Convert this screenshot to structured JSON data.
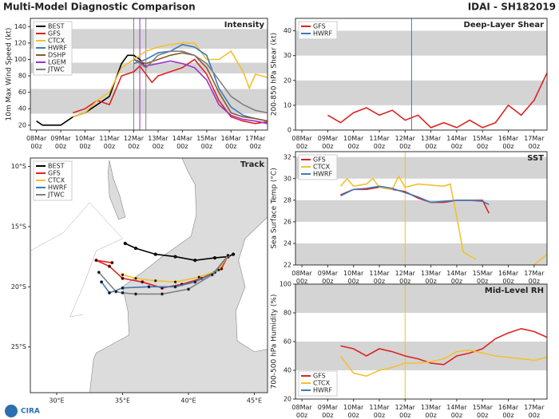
{
  "title": "Multi-Model Diagnostic Comparison",
  "storm": "IDAI - SH182019",
  "logo": "CIRA",
  "chart_data": [
    {
      "type": "line",
      "title": "Intensity",
      "ylabel": "10m Max Wind Speed (kt)",
      "legend": "upper left",
      "xlim": [
        "07Mar 18z",
        "17Mar 12z"
      ],
      "xticks": [
        "08Mar 00z",
        "09Mar 00z",
        "10Mar 00z",
        "11Mar 00z",
        "12Mar 00z",
        "13Mar 00z",
        "14Mar 00z",
        "15Mar 00z",
        "16Mar 00z",
        "17Mar 00z"
      ],
      "ylim": [
        14,
        150
      ],
      "yticks": [
        20,
        40,
        60,
        80,
        100,
        120,
        140
      ],
      "bands": [
        [
          34,
          64
        ],
        [
          83,
          96
        ],
        [
          113,
          137
        ]
      ],
      "vlines": [
        {
          "x": "12Mar 00z",
          "color": "#808080"
        },
        {
          "x": "12Mar 06z",
          "color": "#9b30c8"
        },
        {
          "x": "12Mar 12z",
          "color": "#808080"
        }
      ],
      "series": [
        {
          "name": "BEST",
          "color": "#000000",
          "x": [
            "08Mar 00z",
            "08Mar 06z",
            "09Mar 00z",
            "09Mar 12z",
            "10Mar 00z",
            "10Mar 12z",
            "11Mar 00z",
            "11Mar 06z",
            "11Mar 12z",
            "11Mar 18z",
            "12Mar 00z",
            "12Mar 06z",
            "12Mar 12z"
          ],
          "values": [
            25,
            20,
            20,
            30,
            35,
            45,
            55,
            75,
            95,
            105,
            105,
            100,
            90
          ]
        },
        {
          "name": "GFS",
          "color": "#dd2222",
          "x": [
            "09Mar 12z",
            "10Mar 00z",
            "10Mar 12z",
            "11Mar 00z",
            "11Mar 12z",
            "12Mar 00z",
            "12Mar 06z",
            "12Mar 18z",
            "13Mar 00z",
            "13Mar 12z",
            "14Mar 00z",
            "14Mar 12z",
            "15Mar 00z",
            "15Mar 12z",
            "16Mar 00z",
            "16Mar 12z",
            "17Mar 00z",
            "17Mar 12z"
          ],
          "values": [
            35,
            40,
            50,
            45,
            80,
            85,
            92,
            72,
            80,
            85,
            90,
            100,
            82,
            50,
            30,
            25,
            22,
            24
          ]
        },
        {
          "name": "CTCX",
          "color": "#f2c12e",
          "x": [
            "09Mar 12z",
            "10Mar 00z",
            "10Mar 12z",
            "11Mar 00z",
            "11Mar 12z",
            "12Mar 00z",
            "12Mar 12z",
            "13Mar 00z",
            "13Mar 12z",
            "14Mar 00z",
            "14Mar 12z",
            "15Mar 00z",
            "15Mar 12z",
            "16Mar 00z",
            "16Mar 12z",
            "16Mar 18z",
            "17Mar 00z",
            "17Mar 12z"
          ],
          "values": [
            30,
            35,
            50,
            60,
            90,
            100,
            110,
            115,
            118,
            120,
            120,
            100,
            100,
            110,
            85,
            65,
            82,
            78
          ]
        },
        {
          "name": "HWRF",
          "color": "#3d7ab8",
          "x": [
            "12Mar 00z",
            "12Mar 12z",
            "13Mar 00z",
            "13Mar 12z",
            "14Mar 00z",
            "14Mar 12z",
            "15Mar 00z",
            "15Mar 12z",
            "16Mar 00z",
            "16Mar 12z",
            "17Mar 00z",
            "17Mar 12z"
          ],
          "values": [
            95,
            100,
            108,
            110,
            118,
            115,
            105,
            65,
            42,
            32,
            28,
            25
          ]
        },
        {
          "name": "DSHP",
          "color": "#8c5a2e",
          "x": [
            "12Mar 00z",
            "12Mar 12z",
            "13Mar 00z",
            "13Mar 12z",
            "14Mar 00z",
            "14Mar 12z",
            "15Mar 00z",
            "15Mar 12z",
            "16Mar 00z",
            "16Mar 12z",
            "17Mar 00z",
            "17Mar 12z"
          ],
          "values": [
            100,
            95,
            100,
            105,
            108,
            105,
            90,
            60,
            35,
            30,
            28,
            25
          ]
        },
        {
          "name": "LGEM",
          "color": "#9b30c8",
          "x": [
            "12Mar 00z",
            "12Mar 12z",
            "13Mar 00z",
            "13Mar 12z",
            "14Mar 00z",
            "14Mar 12z",
            "15Mar 00z",
            "15Mar 12z",
            "16Mar 00z",
            "16Mar 12z",
            "17Mar 00z",
            "17Mar 12z"
          ],
          "values": [
            100,
            92,
            95,
            98,
            95,
            90,
            75,
            45,
            32,
            27,
            25,
            22
          ]
        },
        {
          "name": "JTWC",
          "color": "#808080",
          "x": [
            "12Mar 00z",
            "12Mar 12z",
            "13Mar 00z",
            "13Mar 12z",
            "14Mar 00z",
            "14Mar 12z",
            "15Mar 00z",
            "15Mar 12z",
            "16Mar 00z",
            "16Mar 12z",
            "17Mar 00z",
            "17Mar 12z"
          ],
          "values": [
            100,
            90,
            105,
            110,
            110,
            105,
            95,
            75,
            55,
            45,
            38,
            35
          ]
        }
      ]
    },
    {
      "type": "line",
      "title": "Deep-Layer Shear",
      "ylabel": "200-850 hPa Shear (kt)",
      "legend": "upper left",
      "xlim": [
        "07Mar 18z",
        "17Mar 12z"
      ],
      "xticks": [
        "08Mar 00z",
        "09Mar 00z",
        "10Mar 00z",
        "11Mar 00z",
        "12Mar 00z",
        "13Mar 00z",
        "14Mar 00z",
        "15Mar 00z",
        "16Mar 00z",
        "17Mar 00z"
      ],
      "ylim": [
        0,
        45
      ],
      "yticks": [
        0,
        10,
        20,
        30,
        40
      ],
      "bands": [
        [
          10,
          20
        ],
        [
          30,
          40
        ]
      ],
      "vlines": [
        {
          "x": "12Mar 06z",
          "color": "#3d7ab8"
        }
      ],
      "series": [
        {
          "name": "GFS",
          "color": "#dd2222",
          "x": [
            "09Mar 00z",
            "09Mar 12z",
            "10Mar 00z",
            "10Mar 12z",
            "11Mar 00z",
            "11Mar 12z",
            "12Mar 00z",
            "12Mar 12z",
            "13Mar 00z",
            "13Mar 12z",
            "14Mar 00z",
            "14Mar 12z",
            "15Mar 00z",
            "15Mar 12z",
            "16Mar 00z",
            "16Mar 12z",
            "17Mar 00z",
            "17Mar 12z"
          ],
          "values": [
            6,
            3,
            7,
            9,
            6,
            8,
            4,
            6,
            1,
            3,
            1,
            4,
            1,
            3,
            10,
            6,
            12,
            23
          ]
        },
        {
          "name": "HWRF",
          "color": "#3d7ab8",
          "x": [],
          "values": []
        }
      ]
    },
    {
      "type": "track",
      "title": "Track",
      "legend": "upper left",
      "xlim": [
        28,
        46
      ],
      "xticks": [
        {
          "value": 30,
          "label": "30°E"
        },
        {
          "value": 35,
          "label": "35°E"
        },
        {
          "value": 40,
          "label": "40°E"
        },
        {
          "value": 45,
          "label": "45°E"
        }
      ],
      "ylim": [
        -28.8,
        -9.3
      ],
      "yticks": [
        {
          "value": -10,
          "label": "10°S"
        },
        {
          "value": -15,
          "label": "15°S"
        },
        {
          "value": -20,
          "label": "20°S"
        },
        {
          "value": -25,
          "label": "25°S"
        }
      ],
      "series": [
        {
          "name": "BEST",
          "color": "#000000",
          "x": [
            35.2,
            36,
            37.5,
            39,
            40.5,
            42,
            43,
            43.4
          ],
          "values": [
            -16.4,
            -16.8,
            -17.3,
            -17.5,
            -17.8,
            -17.6,
            -17.5,
            -17.3
          ]
        },
        {
          "name": "GFS",
          "color": "#dd2222",
          "x": [
            43,
            42.5,
            41,
            39.5,
            38,
            36.5,
            35,
            34,
            33,
            34.2
          ],
          "values": [
            -17.4,
            -18.5,
            -19.3,
            -19.8,
            -20.1,
            -19.6,
            -19.3,
            -18.3,
            -17.8,
            -18
          ]
        },
        {
          "name": "CTCX",
          "color": "#f2c12e",
          "x": [
            43,
            42.3,
            40.8,
            39,
            37.5,
            36,
            35
          ],
          "values": [
            -17.4,
            -18.6,
            -19.2,
            -19.6,
            -19.5,
            -19.3,
            -19
          ]
        },
        {
          "name": "HWRF",
          "color": "#3d7ab8",
          "x": [
            43,
            42,
            40.5,
            39,
            37,
            35,
            34,
            33.4
          ],
          "values": [
            -17.4,
            -18.8,
            -19.6,
            -20,
            -20,
            -20.1,
            -20.5,
            -19.6
          ]
        },
        {
          "name": "JTWC",
          "color": "#808080",
          "x": [
            43,
            41.8,
            40,
            38,
            36,
            35,
            34.5,
            33.2
          ],
          "values": [
            -17.4,
            -19,
            -20.2,
            -20.6,
            -20.6,
            -20.5,
            -20.4,
            -18.8
          ]
        }
      ]
    },
    {
      "type": "line",
      "title": "SST",
      "ylabel": "Sea Surface Temp (°C)",
      "legend": "upper left",
      "xlim": [
        "07Mar 18z",
        "17Mar 12z"
      ],
      "xticks": [
        "08Mar 00z",
        "09Mar 00z",
        "10Mar 00z",
        "11Mar 00z",
        "12Mar 00z",
        "13Mar 00z",
        "14Mar 00z",
        "15Mar 00z",
        "16Mar 00z",
        "17Mar 00z"
      ],
      "ylim": [
        22,
        32.5
      ],
      "yticks": [
        22,
        24,
        26,
        28,
        30,
        32
      ],
      "bands": [
        [
          22,
          24
        ],
        [
          26,
          28
        ],
        [
          30,
          32
        ]
      ],
      "vlines": [
        {
          "x": "12Mar 00z",
          "color": "#f2c12e"
        }
      ],
      "series": [
        {
          "name": "GFS",
          "color": "#dd2222",
          "x": [
            "09Mar 12z",
            "10Mar 00z",
            "10Mar 12z",
            "11Mar 00z",
            "11Mar 12z",
            "12Mar 00z",
            "12Mar 12z",
            "13Mar 00z",
            "13Mar 12z",
            "14Mar 00z",
            "14Mar 12z",
            "15Mar 00z",
            "15Mar 06z"
          ],
          "values": [
            28.5,
            29,
            29,
            29.2,
            29,
            28.8,
            28.2,
            27.8,
            27.8,
            28,
            28,
            28,
            26.8
          ]
        },
        {
          "name": "CTCX",
          "color": "#f2c12e",
          "x": [
            "09Mar 12z",
            "09Mar 18z",
            "10Mar 00z",
            "10Mar 12z",
            "10Mar 18z",
            "11Mar 00z",
            "11Mar 12z",
            "11Mar 18z",
            "12Mar 00z",
            "12Mar 12z",
            "13Mar 00z",
            "13Mar 12z",
            "13Mar 18z",
            "14Mar 00z",
            "14Mar 06z",
            "14Mar 18z",
            "15Mar 00z",
            "17Mar 00z",
            "17Mar 12z"
          ],
          "values": [
            29.3,
            30,
            29.3,
            29.5,
            30,
            29.2,
            29,
            30.2,
            29.2,
            29.5,
            29.4,
            29.3,
            29.5,
            26.5,
            23.2,
            22.5,
            null,
            22,
            23
          ]
        },
        {
          "name": "HWRF",
          "color": "#3d7ab8",
          "x": [
            "09Mar 12z",
            "10Mar 00z",
            "10Mar 12z",
            "11Mar 00z",
            "11Mar 12z",
            "12Mar 00z",
            "12Mar 12z",
            "13Mar 00z",
            "13Mar 12z",
            "14Mar 00z",
            "14Mar 12z",
            "15Mar 00z",
            "15Mar 06z"
          ],
          "values": [
            28.4,
            29,
            29.1,
            29.3,
            29.1,
            28.7,
            28.3,
            27.8,
            27.9,
            28,
            28,
            27.9,
            27.6
          ]
        }
      ]
    },
    {
      "type": "line",
      "title": "Mid-Level RH",
      "ylabel": "700-500 hPa Humidity (%)",
      "legend": "lower left",
      "xlim": [
        "07Mar 18z",
        "17Mar 12z"
      ],
      "xticks": [
        "08Mar 00z",
        "09Mar 00z",
        "10Mar 00z",
        "11Mar 00z",
        "12Mar 00z",
        "13Mar 00z",
        "14Mar 00z",
        "15Mar 00z",
        "16Mar 00z",
        "17Mar 00z"
      ],
      "ylim": [
        20,
        100
      ],
      "yticks": [
        20,
        40,
        60,
        80,
        100
      ],
      "bands": [
        [
          40,
          60
        ],
        [
          80,
          100
        ]
      ],
      "vlines": [
        {
          "x": "12Mar 00z",
          "color": "#f2c12e"
        }
      ],
      "series": [
        {
          "name": "GFS",
          "color": "#dd2222",
          "x": [
            "09Mar 12z",
            "10Mar 00z",
            "10Mar 12z",
            "11Mar 00z",
            "11Mar 12z",
            "12Mar 00z",
            "12Mar 12z",
            "13Mar 00z",
            "13Mar 12z",
            "14Mar 00z",
            "14Mar 12z",
            "15Mar 00z",
            "15Mar 12z",
            "16Mar 00z",
            "16Mar 12z",
            "17Mar 00z",
            "17Mar 12z"
          ],
          "values": [
            57,
            55,
            50,
            55,
            53,
            50,
            48,
            45,
            44,
            50,
            52,
            55,
            62,
            66,
            69,
            67,
            63
          ]
        },
        {
          "name": "CTCX",
          "color": "#f2c12e",
          "x": [
            "09Mar 12z",
            "10Mar 00z",
            "10Mar 12z",
            "11Mar 00z",
            "11Mar 12z",
            "12Mar 00z",
            "12Mar 12z",
            "13Mar 00z",
            "13Mar 12z",
            "14Mar 00z",
            "14Mar 12z",
            "15Mar 00z",
            "15Mar 12z",
            "16Mar 00z",
            "16Mar 12z",
            "17Mar 00z",
            "17Mar 12z"
          ],
          "values": [
            50,
            38,
            36,
            40,
            42,
            45,
            45,
            46,
            48,
            53,
            54,
            52,
            50,
            49,
            48,
            47,
            49
          ]
        },
        {
          "name": "HWRF",
          "color": "#3d7ab8",
          "x": [],
          "values": []
        }
      ]
    }
  ]
}
